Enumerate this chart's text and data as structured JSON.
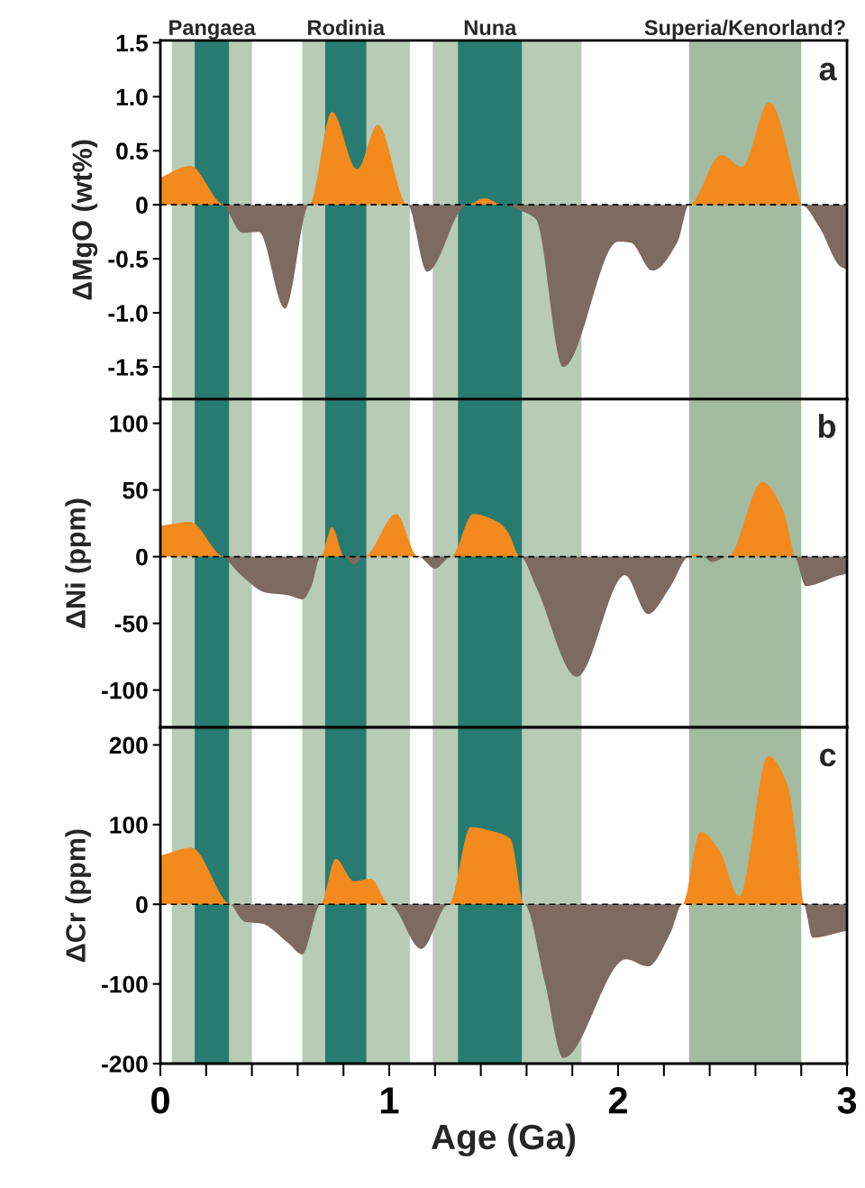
{
  "chart_data": [
    {
      "type": "area",
      "ylabel": "ΔMgO (wt%)",
      "annotations": [
        "a"
      ],
      "xlim": [
        0,
        3
      ],
      "ylim": [
        -1.8,
        1.52
      ],
      "tick_labels": "y",
      "yticks": [
        1.5,
        {
          "value": 1.0,
          "label": "1.0"
        },
        0.5,
        0,
        -0.5,
        {
          "value": -1.0,
          "label": "-1.0"
        },
        -1.5
      ],
      "series": [
        {
          "color": "#f28a1e",
          "x": [
            0,
            0.13,
            0.28,
            0.65,
            0.75,
            0.86,
            0.95,
            1.08,
            1.34,
            1.415,
            1.5,
            2.31,
            2.45,
            2.54,
            2.66,
            2.8
          ],
          "values": [
            0.25,
            0.36,
            0,
            0,
            0.86,
            0.33,
            0.74,
            0,
            0,
            0.06,
            0,
            0,
            0.46,
            0.35,
            0.95,
            0
          ]
        },
        {
          "color": "#7d6a61",
          "x": [
            0.28,
            0.36,
            0.43,
            0.545,
            0.65,
            1.08,
            1.165,
            1.34,
            1.5,
            1.58,
            1.64,
            1.76,
            2.0,
            2.055,
            2.15,
            2.26,
            2.31,
            2.8,
            2.88,
            2.97,
            3.0
          ],
          "values": [
            0,
            -0.26,
            -0.25,
            -0.96,
            0,
            0,
            -0.62,
            0,
            0,
            -0.06,
            -0.13,
            -1.5,
            -0.34,
            -0.35,
            -0.61,
            -0.34,
            0,
            0,
            -0.21,
            -0.57,
            -0.6
          ]
        }
      ],
      "ref_lines": [
        {
          "axis": "y",
          "value": 0,
          "color": "#000000",
          "line_style": "dashed"
        }
      ],
      "bands": [
        {
          "axis": "x",
          "from": 0.05,
          "to": 0.4,
          "color": "#b7cbb5"
        },
        {
          "axis": "x",
          "from": 0.62,
          "to": 1.09,
          "color": "#b7cbb5"
        },
        {
          "axis": "x",
          "from": 1.19,
          "to": 1.3,
          "color": "#b7cbb5"
        },
        {
          "axis": "x",
          "from": 1.58,
          "to": 1.84,
          "color": "#b7cbb5"
        },
        {
          "axis": "x",
          "from": 2.31,
          "to": 2.8,
          "color": "#a3bba0",
          "label": "Superia/Kenorland?"
        },
        {
          "axis": "x",
          "from": 0.15,
          "to": 0.3,
          "color": "#277b70",
          "label": "Pangaea"
        },
        {
          "axis": "x",
          "from": 0.72,
          "to": 0.9,
          "color": "#277b70",
          "label": "Rodinia"
        },
        {
          "axis": "x",
          "from": 1.3,
          "to": 1.58,
          "color": "#277b70",
          "label": "Nuna"
        }
      ]
    },
    {
      "type": "area",
      "ylabel": "ΔNi (ppm)",
      "annotations": [
        "b"
      ],
      "xlim": [
        0,
        3
      ],
      "ylim": [
        -128,
        118
      ],
      "tick_labels": "y",
      "yticks": [
        100,
        50,
        0,
        -50,
        -100
      ],
      "series": [
        {
          "color": "#f28a1e",
          "x": [
            0,
            0.13,
            0.28,
            0.7,
            0.75,
            0.805,
            0.89,
            1.03,
            1.126,
            1.27,
            1.366,
            1.484,
            1.52,
            1.573,
            2.31,
            2.34,
            2.37,
            2.48,
            2.63,
            2.72,
            2.77
          ],
          "values": [
            23,
            26,
            0,
            0,
            22,
            0,
            0,
            32,
            0,
            0,
            32,
            25,
            18,
            0,
            0,
            2,
            0,
            0,
            56,
            35,
            0
          ]
        },
        {
          "color": "#7d6a61",
          "x": [
            0.28,
            0.36,
            0.46,
            0.56,
            0.62,
            0.66,
            0.7,
            0.805,
            0.845,
            0.89,
            1.126,
            1.2,
            1.27,
            1.573,
            1.64,
            1.82,
            2.03,
            2.13,
            2.23,
            2.31,
            2.37,
            2.41,
            2.48,
            2.77,
            2.82,
            2.97,
            3.0
          ],
          "values": [
            0,
            -15,
            -27,
            -29,
            -32,
            -22,
            0,
            0,
            -6,
            0,
            0,
            -9,
            0,
            0,
            -22,
            -90,
            -14,
            -43,
            -22,
            0,
            0,
            -4,
            0,
            0,
            -22,
            -14,
            -13
          ]
        }
      ],
      "ref_lines": [
        {
          "axis": "y",
          "value": 0,
          "color": "#000000",
          "line_style": "dashed"
        }
      ],
      "bands": [
        {
          "axis": "x",
          "from": 0.05,
          "to": 0.4,
          "color": "#b7cbb5"
        },
        {
          "axis": "x",
          "from": 0.62,
          "to": 1.09,
          "color": "#b7cbb5"
        },
        {
          "axis": "x",
          "from": 1.19,
          "to": 1.3,
          "color": "#b7cbb5"
        },
        {
          "axis": "x",
          "from": 1.58,
          "to": 1.84,
          "color": "#b7cbb5"
        },
        {
          "axis": "x",
          "from": 2.31,
          "to": 2.8,
          "color": "#a3bba0"
        },
        {
          "axis": "x",
          "from": 0.15,
          "to": 0.3,
          "color": "#277b70"
        },
        {
          "axis": "x",
          "from": 0.72,
          "to": 0.9,
          "color": "#277b70"
        },
        {
          "axis": "x",
          "from": 1.3,
          "to": 1.58,
          "color": "#277b70"
        }
      ]
    },
    {
      "type": "area",
      "ylabel": "ΔCr (ppm)",
      "xlabel": "Age (Ga)",
      "annotations": [
        "c"
      ],
      "xlim": [
        0,
        3
      ],
      "ylim": [
        -200,
        222
      ],
      "xticks": [
        0,
        {
          "value": 0.2,
          "label": null
        },
        {
          "value": 0.4,
          "label": null
        },
        {
          "value": 0.6,
          "label": null
        },
        {
          "value": 0.8,
          "label": null
        },
        1,
        {
          "value": 1.2,
          "label": null
        },
        {
          "value": 1.4,
          "label": null
        },
        {
          "value": 1.6,
          "label": null
        },
        {
          "value": 1.8,
          "label": null
        },
        2,
        {
          "value": 2.2,
          "label": null
        },
        {
          "value": 2.4,
          "label": null
        },
        {
          "value": 2.6,
          "label": null
        },
        {
          "value": 2.8,
          "label": null
        },
        3
      ],
      "yticks": [
        200,
        100,
        0,
        -100,
        -200
      ],
      "series": [
        {
          "color": "#f28a1e",
          "x": [
            0,
            0.136,
            0.31,
            0.7,
            0.766,
            0.845,
            0.92,
            1.0,
            1.26,
            1.356,
            1.46,
            1.53,
            1.59,
            2.28,
            2.36,
            2.44,
            2.53,
            2.655,
            2.74,
            2.81
          ],
          "values": [
            61,
            71,
            0,
            0,
            57,
            29,
            32,
            0,
            0,
            97,
            91,
            82,
            0,
            0,
            91,
            69,
            10,
            186,
            150,
            0
          ]
        },
        {
          "color": "#7d6a61",
          "x": [
            0.31,
            0.37,
            0.44,
            0.56,
            0.62,
            0.7,
            1.0,
            1.14,
            1.26,
            1.59,
            1.68,
            1.76,
            2.035,
            2.13,
            2.23,
            2.28,
            2.81,
            2.85,
            2.97,
            3.0
          ],
          "values": [
            0,
            -22,
            -24,
            -49,
            -63,
            0,
            0,
            -56,
            0,
            0,
            -98,
            -193,
            -69,
            -78,
            -35,
            0,
            0,
            -42,
            -35,
            -33
          ]
        }
      ],
      "ref_lines": [
        {
          "axis": "y",
          "value": 0,
          "color": "#000000",
          "line_style": "dashed"
        }
      ],
      "bands": [
        {
          "axis": "x",
          "from": 0.05,
          "to": 0.4,
          "color": "#b7cbb5"
        },
        {
          "axis": "x",
          "from": 0.62,
          "to": 1.09,
          "color": "#b7cbb5"
        },
        {
          "axis": "x",
          "from": 1.19,
          "to": 1.3,
          "color": "#b7cbb5"
        },
        {
          "axis": "x",
          "from": 1.58,
          "to": 1.84,
          "color": "#b7cbb5"
        },
        {
          "axis": "x",
          "from": 2.31,
          "to": 2.8,
          "color": "#a3bba0"
        },
        {
          "axis": "x",
          "from": 0.15,
          "to": 0.3,
          "color": "#277b70"
        },
        {
          "axis": "x",
          "from": 0.72,
          "to": 0.9,
          "color": "#277b70"
        },
        {
          "axis": "x",
          "from": 1.3,
          "to": 1.58,
          "color": "#277b70"
        }
      ]
    }
  ]
}
